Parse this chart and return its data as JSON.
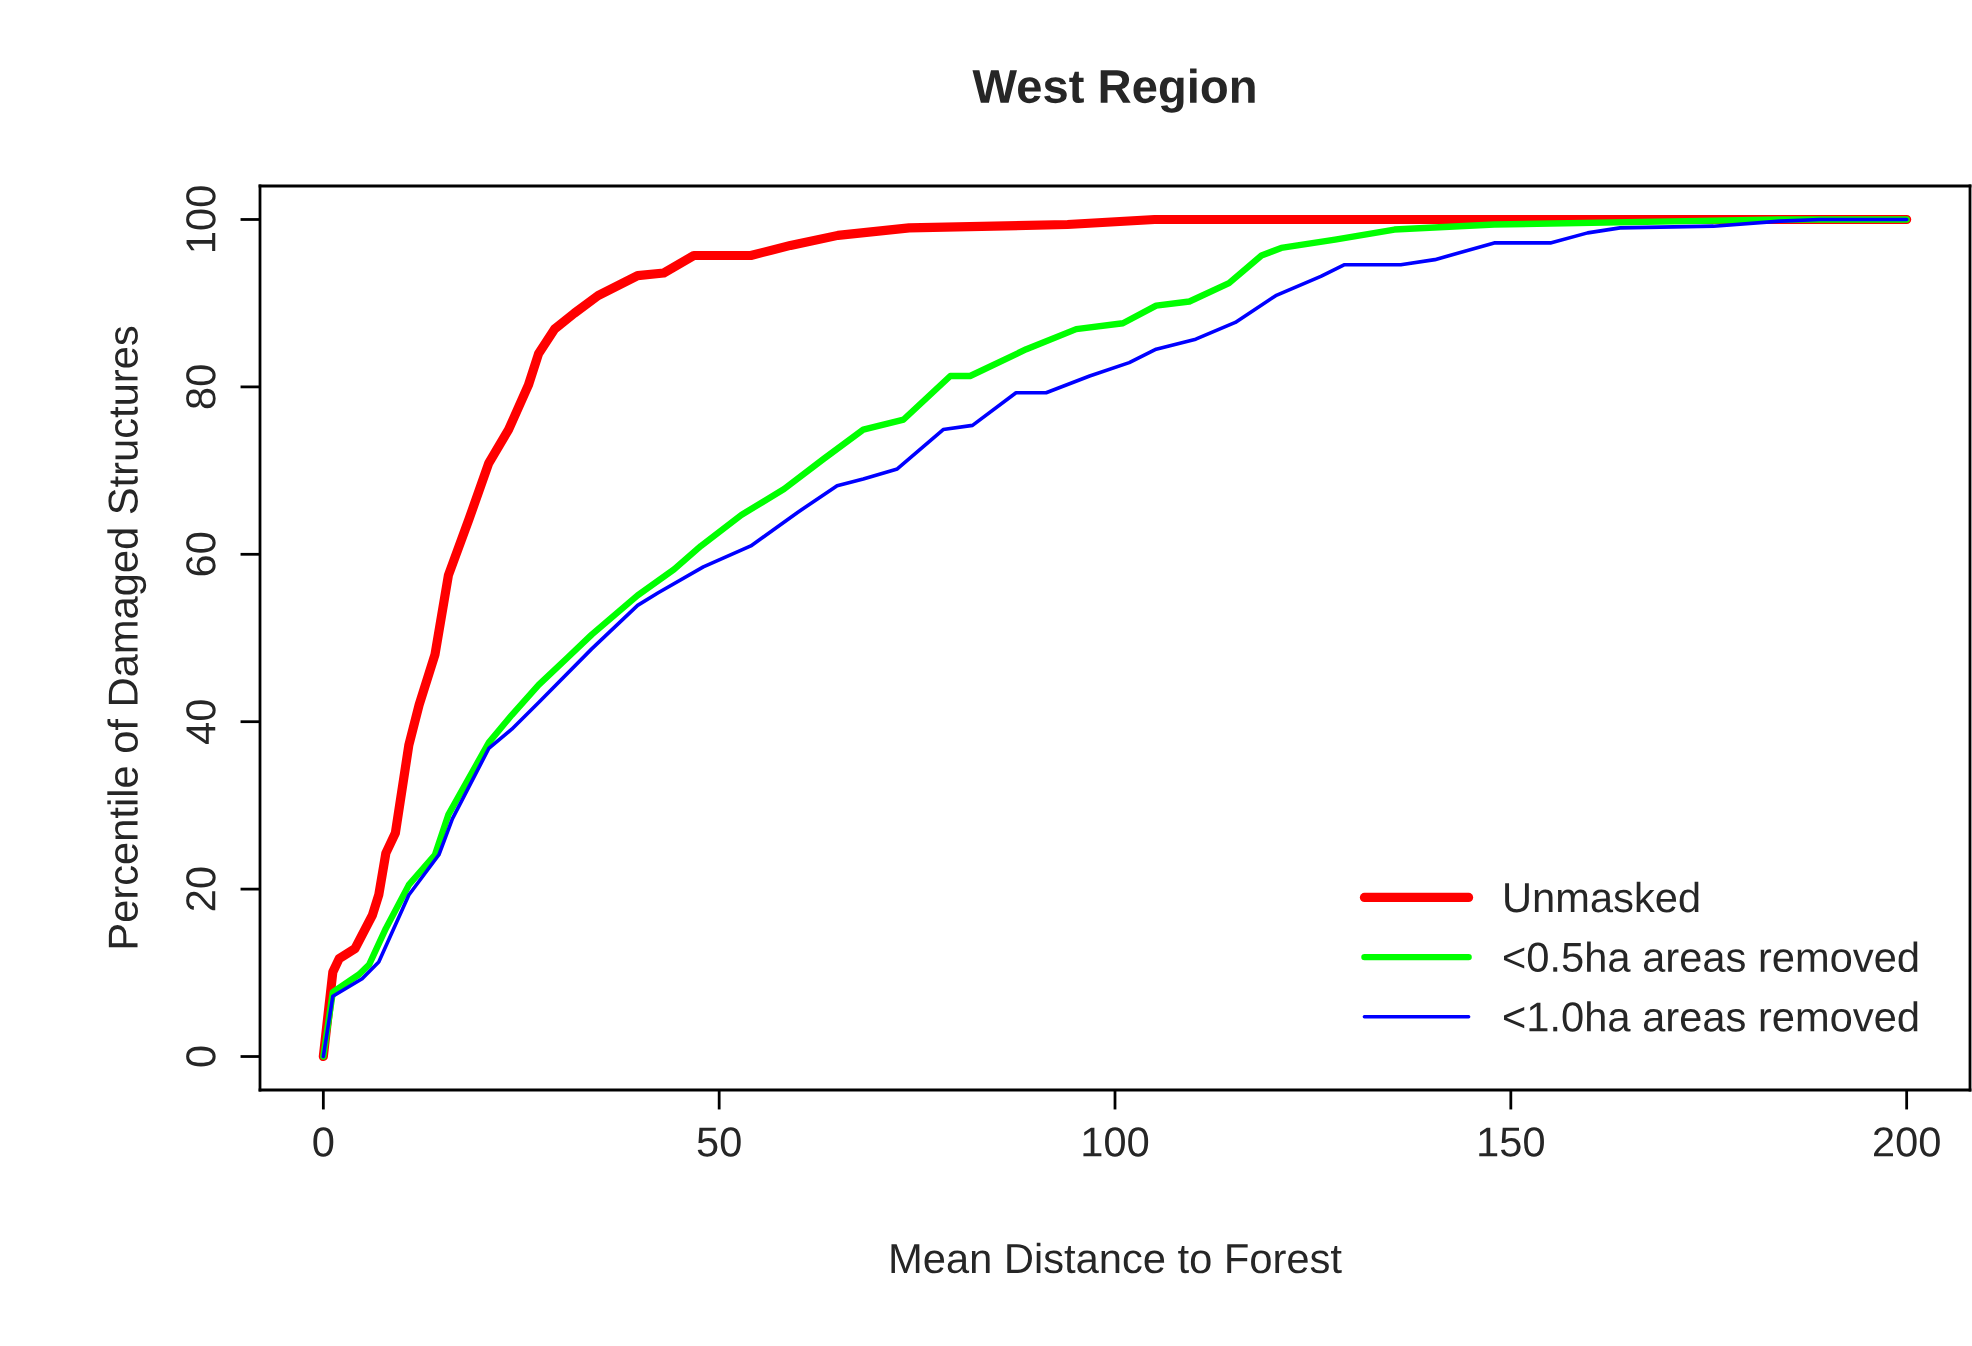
{
  "chart_data": {
    "type": "line",
    "title": "West Region",
    "xlabel": "Mean Distance to Forest",
    "ylabel": "Percentile of Damaged Structures",
    "xlim": [
      -8,
      208
    ],
    "ylim": [
      -4,
      104
    ],
    "xticks": [
      0,
      50,
      100,
      150,
      200
    ],
    "yticks": [
      0,
      20,
      40,
      60,
      80,
      100
    ],
    "grid": false,
    "legend": "bottom right",
    "marker": "none",
    "line_style": "solid",
    "series": [
      {
        "name": "Unmasked",
        "color": "#ff0000",
        "x": [
          0,
          1.2,
          2,
          4,
          6.2,
          7,
          7.9,
          9.1,
          10.8,
          12.1,
          14.1,
          15.8,
          18.4,
          20.9,
          23.4,
          25.9,
          27.2,
          29.2,
          31.7,
          34.7,
          39.7,
          43,
          46.8,
          54,
          59,
          65,
          74,
          94,
          105,
          200
        ],
        "values": [
          0,
          10.1,
          11.7,
          12.9,
          16.9,
          19.3,
          24.3,
          26.7,
          37.2,
          42,
          48,
          57.5,
          64.2,
          70.9,
          74.9,
          80.2,
          84,
          86.9,
          88.8,
          90.9,
          93.3,
          93.6,
          95.7,
          95.7,
          96.9,
          98.1,
          99,
          99.4,
          100,
          100
        ]
      },
      {
        "name": "<0.5ha areas removed",
        "color": "#00ff00",
        "x": [
          0,
          1.2,
          4.5,
          5.8,
          7.9,
          10.8,
          14.1,
          15.8,
          20.9,
          23.8,
          27.2,
          30.9,
          33.9,
          39.7,
          44.3,
          47.7,
          52.8,
          58.2,
          63.2,
          68.2,
          73.3,
          79.2,
          81.7,
          88.8,
          95.1,
          101,
          105.2,
          109.4,
          114.4,
          118.5,
          121,
          127.8,
          135.3,
          147.9,
          172.2,
          184,
          200
        ],
        "values": [
          0,
          7.7,
          9.8,
          11,
          15.3,
          20.5,
          24.1,
          28.9,
          37.5,
          40.8,
          44.4,
          47.7,
          50.4,
          55.1,
          58.2,
          61,
          64.7,
          67.8,
          71.4,
          74.9,
          76.1,
          81.3,
          81.3,
          84.5,
          86.9,
          87.6,
          89.7,
          90.2,
          92.4,
          95.7,
          96.6,
          97.6,
          98.8,
          99.4,
          99.8,
          100,
          100
        ]
      },
      {
        "name": "<1.0ha areas removed",
        "color": "#0000ff",
        "x": [
          0,
          1.2,
          4.9,
          7,
          10.8,
          14.6,
          16.3,
          20.9,
          23.8,
          27.2,
          33.9,
          39.7,
          42.3,
          48,
          54,
          59.9,
          64.9,
          68.2,
          72.5,
          78.3,
          82,
          87.5,
          91.3,
          96.8,
          101.8,
          105.2,
          110.2,
          115.2,
          120.3,
          126,
          129,
          136.1,
          140.4,
          147.9,
          155,
          159.7,
          163.8,
          175.6,
          184,
          189,
          200
        ],
        "values": [
          0,
          7.2,
          9.3,
          11.3,
          19.3,
          24.1,
          28.4,
          36.8,
          39.1,
          42.3,
          48.7,
          53.9,
          55.4,
          58.5,
          61,
          65,
          68.2,
          69,
          70.2,
          74.9,
          75.4,
          79.3,
          79.3,
          81.3,
          82.9,
          84.5,
          85.7,
          87.7,
          90.9,
          93.2,
          94.6,
          94.6,
          95.2,
          97.2,
          97.2,
          98.4,
          99,
          99.2,
          99.8,
          100,
          100
        ]
      }
    ]
  }
}
